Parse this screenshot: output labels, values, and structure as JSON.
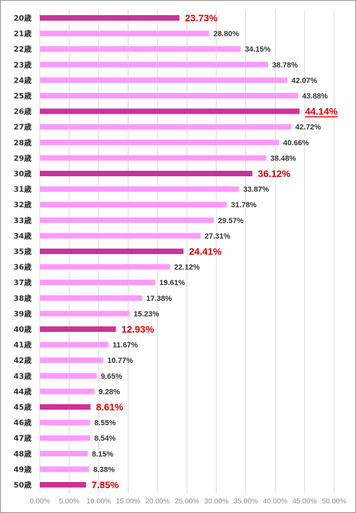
{
  "chart_data": {
    "type": "bar",
    "orientation": "horizontal",
    "title": "",
    "xlabel": "",
    "ylabel": "",
    "xlim": [
      0,
      50
    ],
    "x_ticks": [
      "0.00%",
      "5.00%",
      "10.00%",
      "15.00%",
      "20.00%",
      "25.00%",
      "30.00%",
      "35.00%",
      "40.00%",
      "45.00%",
      "50.00%"
    ],
    "grid": "vertical",
    "colors": {
      "normal": "#ff99ff",
      "highlight": "#cc3399",
      "highlight_label": "#e00000"
    },
    "categories": [
      "20歳",
      "21歳",
      "22歳",
      "23歳",
      "24歳",
      "25歳",
      "26歳",
      "27歳",
      "28歳",
      "29歳",
      "30歳",
      "31歳",
      "32歳",
      "33歳",
      "34歳",
      "35歳",
      "36歳",
      "37歳",
      "38歳",
      "39歳",
      "40歳",
      "41歳",
      "42歳",
      "43歳",
      "44歳",
      "45歳",
      "46歳",
      "47歳",
      "48歳",
      "49歳",
      "50歳"
    ],
    "values": [
      23.73,
      28.8,
      34.15,
      38.78,
      42.07,
      43.88,
      44.14,
      42.72,
      40.66,
      38.48,
      36.12,
      33.87,
      31.78,
      29.57,
      27.31,
      24.41,
      22.12,
      19.61,
      17.38,
      15.23,
      12.93,
      11.67,
      10.77,
      9.65,
      9.28,
      8.61,
      8.55,
      8.54,
      8.15,
      8.38,
      7.85
    ],
    "labels": [
      "23.73%",
      "28.80%",
      "34.15%",
      "38.78%",
      "42.07%",
      "43.88%",
      "44.14%",
      "42.72%",
      "40.66%",
      "38.48%",
      "36.12%",
      "33.87%",
      "31.78%",
      "29.57%",
      "27.31%",
      "24.41%",
      "22.12%",
      "19.61%",
      "17.38%",
      "15.23%",
      "12.93%",
      "11.67%",
      "10.77%",
      "9.65%",
      "9.28%",
      "8.61%",
      "8.55%",
      "8.54%",
      "8.15%",
      "8.38%",
      "7.85%"
    ],
    "highlighted": [
      "20歳",
      "26歳",
      "30歳",
      "35歳",
      "40歳",
      "45歳",
      "50歳"
    ],
    "underlined": [
      "26歳"
    ]
  }
}
